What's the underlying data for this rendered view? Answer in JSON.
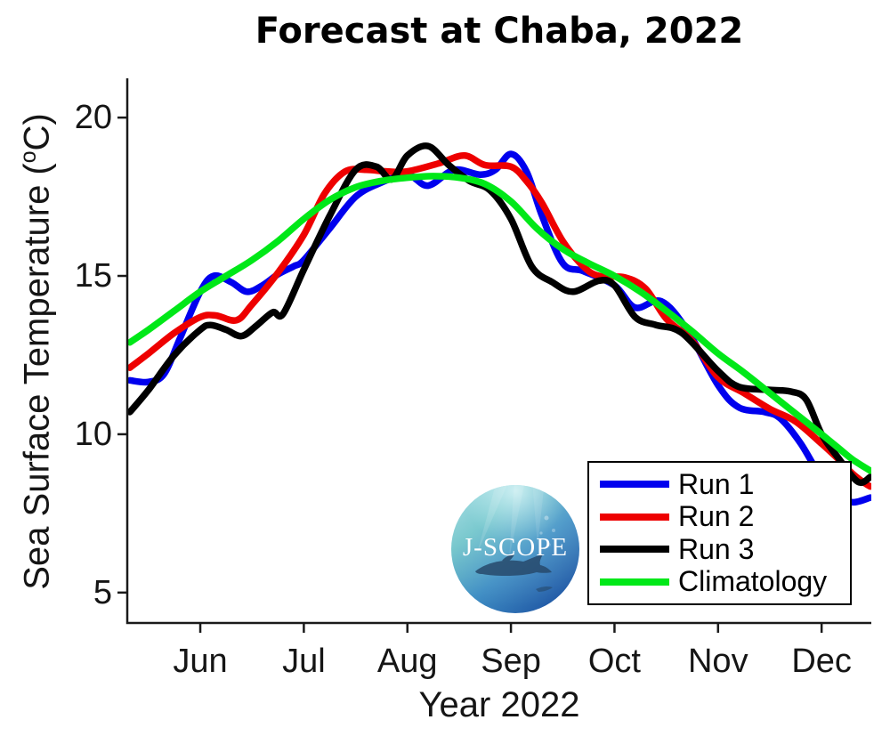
{
  "title": "Forecast at Chaba, 2022",
  "logo": {
    "text": "J-SCOPE"
  },
  "chart_data": {
    "type": "line",
    "title": "Forecast at Chaba, 2022",
    "xlabel": "Year 2022",
    "ylabel": "Sea Surface Temperature (oC)",
    "ylabel_prefix": "Sea Surface Temperature (",
    "ylabel_sup": "o",
    "ylabel_suffix": "C)",
    "x_unit_note": "x values are decimal months of 2022 (6.0 = Jun 1)",
    "xlim": [
      5.295,
      12.48
    ],
    "ylim": [
      4.04,
      21.24
    ],
    "grid": false,
    "legend_position": "lower right",
    "x_ticks": [
      {
        "v": 6,
        "label": "Jun"
      },
      {
        "v": 7,
        "label": "Jul"
      },
      {
        "v": 8,
        "label": "Aug"
      },
      {
        "v": 9,
        "label": "Sep"
      },
      {
        "v": 10,
        "label": "Oct"
      },
      {
        "v": 11,
        "label": "Nov"
      },
      {
        "v": 12,
        "label": "Dec"
      }
    ],
    "y_ticks": [
      {
        "v": 5,
        "label": "5"
      },
      {
        "v": 10,
        "label": "10"
      },
      {
        "v": 15,
        "label": "15"
      },
      {
        "v": 20,
        "label": "20"
      }
    ],
    "series": [
      {
        "name": "Run 1",
        "color": "#0000ee",
        "points": [
          [
            5.32,
            11.7
          ],
          [
            5.5,
            11.65
          ],
          [
            5.65,
            11.9
          ],
          [
            5.8,
            13.0
          ],
          [
            6.0,
            14.5
          ],
          [
            6.13,
            15.0
          ],
          [
            6.3,
            14.8
          ],
          [
            6.45,
            14.5
          ],
          [
            6.6,
            14.7
          ],
          [
            6.75,
            15.05
          ],
          [
            6.9,
            15.3
          ],
          [
            7.0,
            15.5
          ],
          [
            7.25,
            16.5
          ],
          [
            7.5,
            17.5
          ],
          [
            7.75,
            17.95
          ],
          [
            8.0,
            18.2
          ],
          [
            8.2,
            17.85
          ],
          [
            8.45,
            18.35
          ],
          [
            8.7,
            18.2
          ],
          [
            8.85,
            18.35
          ],
          [
            9.0,
            18.85
          ],
          [
            9.15,
            18.3
          ],
          [
            9.3,
            16.9
          ],
          [
            9.5,
            15.4
          ],
          [
            9.7,
            15.15
          ],
          [
            10.0,
            14.7
          ],
          [
            10.2,
            14.0
          ],
          [
            10.45,
            14.2
          ],
          [
            10.7,
            13.3
          ],
          [
            11.0,
            11.55
          ],
          [
            11.2,
            10.85
          ],
          [
            11.45,
            10.7
          ],
          [
            11.6,
            10.5
          ],
          [
            11.8,
            9.7
          ],
          [
            12.0,
            8.6
          ],
          [
            12.15,
            8.05
          ],
          [
            12.3,
            7.85
          ],
          [
            12.47,
            8.0
          ]
        ]
      },
      {
        "name": "Run 2",
        "color": "#ee0000",
        "points": [
          [
            5.32,
            12.1
          ],
          [
            5.5,
            12.55
          ],
          [
            5.75,
            13.2
          ],
          [
            6.0,
            13.7
          ],
          [
            6.15,
            13.75
          ],
          [
            6.35,
            13.6
          ],
          [
            6.5,
            14.1
          ],
          [
            6.75,
            15.1
          ],
          [
            7.0,
            16.3
          ],
          [
            7.2,
            17.6
          ],
          [
            7.4,
            18.3
          ],
          [
            7.6,
            18.35
          ],
          [
            7.8,
            18.3
          ],
          [
            8.0,
            18.3
          ],
          [
            8.3,
            18.55
          ],
          [
            8.55,
            18.8
          ],
          [
            8.75,
            18.5
          ],
          [
            9.0,
            18.45
          ],
          [
            9.15,
            18.0
          ],
          [
            9.3,
            17.3
          ],
          [
            9.5,
            16.1
          ],
          [
            9.7,
            15.3
          ],
          [
            9.85,
            15.0
          ],
          [
            10.1,
            14.95
          ],
          [
            10.3,
            14.6
          ],
          [
            10.5,
            13.65
          ],
          [
            10.75,
            12.95
          ],
          [
            11.0,
            11.8
          ],
          [
            11.25,
            11.3
          ],
          [
            11.5,
            10.8
          ],
          [
            11.75,
            10.4
          ],
          [
            12.0,
            9.7
          ],
          [
            12.15,
            9.25
          ],
          [
            12.3,
            8.75
          ],
          [
            12.42,
            8.45
          ],
          [
            12.47,
            8.35
          ]
        ]
      },
      {
        "name": "Run 3",
        "color": "#000000",
        "points": [
          [
            5.32,
            10.7
          ],
          [
            5.5,
            11.4
          ],
          [
            5.75,
            12.5
          ],
          [
            6.0,
            13.3
          ],
          [
            6.1,
            13.45
          ],
          [
            6.25,
            13.3
          ],
          [
            6.4,
            13.1
          ],
          [
            6.55,
            13.45
          ],
          [
            6.7,
            13.85
          ],
          [
            6.8,
            13.8
          ],
          [
            7.0,
            15.2
          ],
          [
            7.25,
            16.9
          ],
          [
            7.5,
            18.35
          ],
          [
            7.7,
            18.45
          ],
          [
            7.85,
            18.05
          ],
          [
            8.0,
            18.8
          ],
          [
            8.2,
            19.1
          ],
          [
            8.4,
            18.5
          ],
          [
            8.6,
            18.0
          ],
          [
            8.8,
            17.7
          ],
          [
            9.0,
            16.8
          ],
          [
            9.2,
            15.3
          ],
          [
            9.4,
            14.8
          ],
          [
            9.6,
            14.5
          ],
          [
            9.85,
            14.85
          ],
          [
            10.0,
            14.7
          ],
          [
            10.2,
            13.7
          ],
          [
            10.4,
            13.45
          ],
          [
            10.65,
            13.2
          ],
          [
            11.0,
            12.0
          ],
          [
            11.2,
            11.5
          ],
          [
            11.5,
            11.4
          ],
          [
            11.7,
            11.35
          ],
          [
            11.85,
            11.1
          ],
          [
            12.0,
            10.0
          ],
          [
            12.15,
            9.3
          ],
          [
            12.35,
            8.5
          ],
          [
            12.47,
            8.65
          ]
        ]
      },
      {
        "name": "Climatology",
        "color": "#00e818",
        "points": [
          [
            5.32,
            12.9
          ],
          [
            5.5,
            13.3
          ],
          [
            5.75,
            13.9
          ],
          [
            6.0,
            14.5
          ],
          [
            6.25,
            15.0
          ],
          [
            6.5,
            15.5
          ],
          [
            6.75,
            16.1
          ],
          [
            7.0,
            16.8
          ],
          [
            7.25,
            17.4
          ],
          [
            7.5,
            17.8
          ],
          [
            7.75,
            18.0
          ],
          [
            8.0,
            18.1
          ],
          [
            8.25,
            18.15
          ],
          [
            8.5,
            18.1
          ],
          [
            8.75,
            17.9
          ],
          [
            9.0,
            17.35
          ],
          [
            9.25,
            16.5
          ],
          [
            9.5,
            15.85
          ],
          [
            9.75,
            15.4
          ],
          [
            10.0,
            15.0
          ],
          [
            10.25,
            14.5
          ],
          [
            10.5,
            13.9
          ],
          [
            10.75,
            13.25
          ],
          [
            11.0,
            12.55
          ],
          [
            11.25,
            11.95
          ],
          [
            11.5,
            11.3
          ],
          [
            11.75,
            10.65
          ],
          [
            12.0,
            10.0
          ],
          [
            12.15,
            9.6
          ],
          [
            12.3,
            9.2
          ],
          [
            12.47,
            8.85
          ]
        ]
      }
    ]
  }
}
